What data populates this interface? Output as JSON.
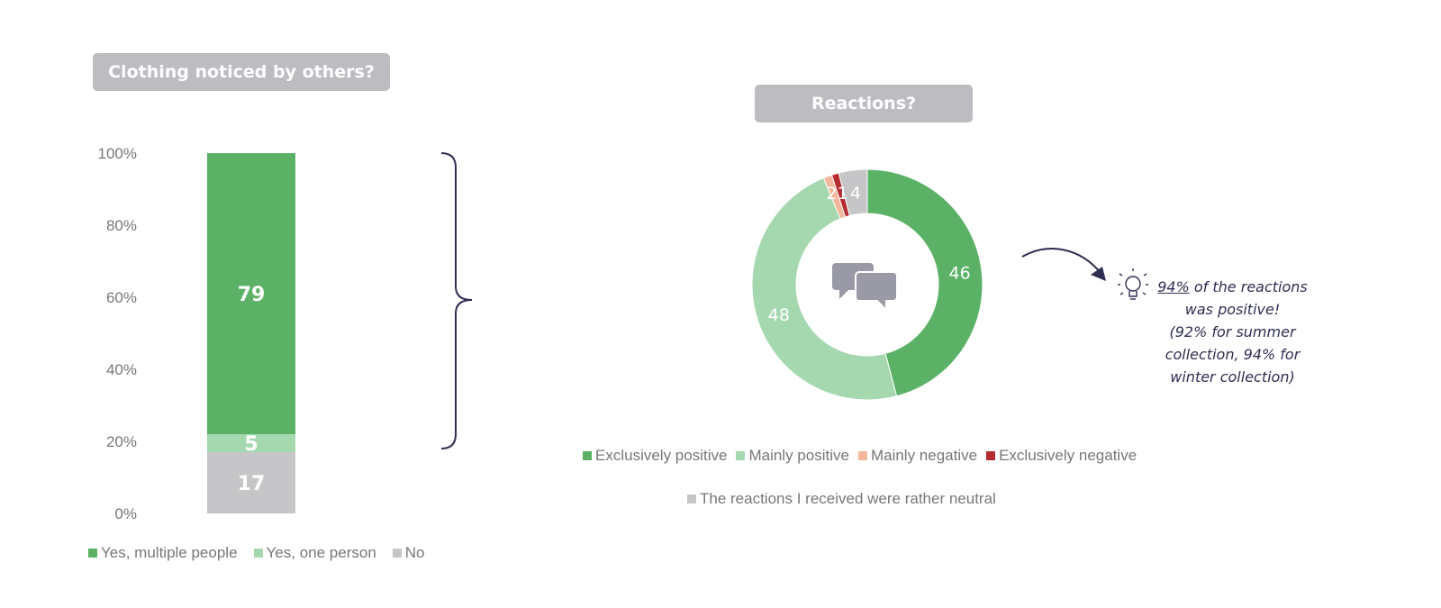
{
  "titles": {
    "bar": "Clothing noticed by others?",
    "donut": "Reactions?"
  },
  "colors": {
    "dark_green": "#5bb166",
    "light_green": "#a6d8b0",
    "gray": "#c6c6c8",
    "peach": "#f2b79b",
    "red": "#b52b30",
    "bracket": "#2e2e52",
    "axis_text": "#777777"
  },
  "chart_data": [
    {
      "type": "bar",
      "stacked": true,
      "title": "Clothing noticed by others?",
      "categories": [
        ""
      ],
      "ylim": [
        0,
        100
      ],
      "y_ticks": [
        "0%",
        "20%",
        "40%",
        "60%",
        "80%",
        "100%"
      ],
      "series": [
        {
          "name": "No",
          "values": [
            17
          ],
          "color": "#c6c6c8"
        },
        {
          "name": "Yes, one person",
          "values": [
            5
          ],
          "color": "#a6d8b0"
        },
        {
          "name": "Yes, multiple people",
          "values": [
            79
          ],
          "color": "#5bb166"
        }
      ],
      "data_labels": [
        "17",
        "5",
        "79"
      ],
      "legend": [
        "Yes, multiple people",
        "Yes, one person",
        "No"
      ],
      "legend_position": "bottom"
    },
    {
      "type": "pie",
      "donut": true,
      "title": "Reactions?",
      "slices": [
        {
          "name": "Exclusively positive",
          "value": 46,
          "label": "46",
          "color": "#5bb166"
        },
        {
          "name": "Mainly positive",
          "value": 48,
          "label": "48",
          "color": "#a6d8b0"
        },
        {
          "name": "Mainly negative",
          "value": 1.2,
          "label": "",
          "color": "#f2b79b"
        },
        {
          "name": "Exclusively negative",
          "value": 1,
          "label": "",
          "color": "#b52b30"
        },
        {
          "name": "The reactions I received were rather neutral",
          "value": 4,
          "label": "4",
          "color": "#c6c6c8"
        }
      ],
      "overlay_label": "21",
      "legend": [
        "Exclusively positive",
        "Mainly positive",
        "Mainly negative",
        "Exclusively negative",
        "The reactions I received were rather neutral"
      ],
      "legend_position": "bottom"
    }
  ],
  "insight": {
    "pct": "94%",
    "line1_rest": " of the reactions",
    "line2": "was positive!",
    "line3": "(92% for summer",
    "line4": "collection, 94% for",
    "line5": "winter collection)"
  },
  "icons": [
    "chat-bubbles-icon",
    "lightbulb-icon",
    "curved-arrow-icon",
    "bracket"
  ]
}
